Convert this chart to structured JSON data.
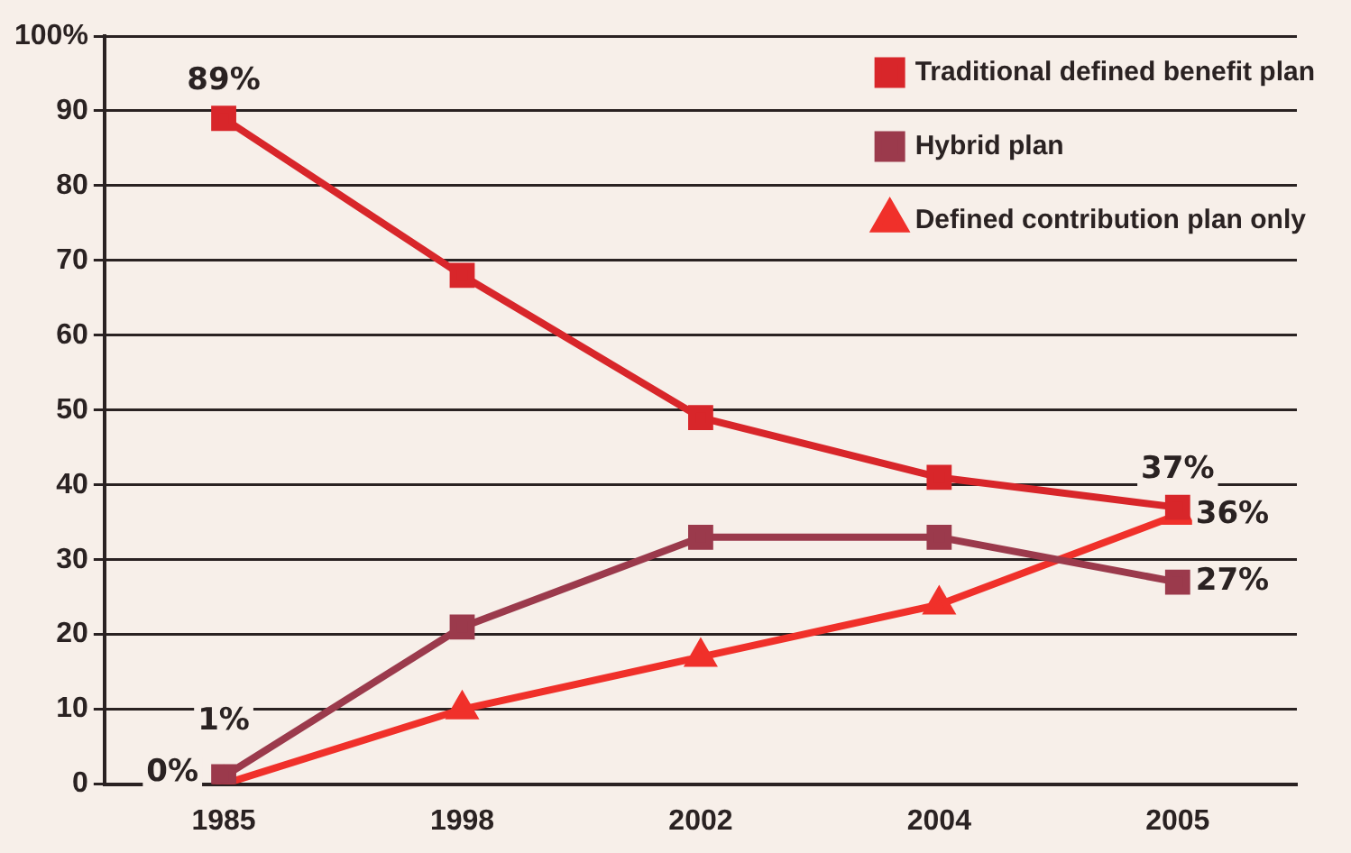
{
  "chart_data": {
    "type": "line",
    "categories": [
      "1985",
      "1998",
      "2002",
      "2004",
      "2005"
    ],
    "series": [
      {
        "name": "Traditional defined benefit plan",
        "color": "#d8262a",
        "marker": "square",
        "values": [
          89,
          68,
          49,
          41,
          37
        ],
        "value_labels": [
          "89%",
          null,
          null,
          null,
          "37%"
        ]
      },
      {
        "name": "Hybrid plan",
        "color": "#9b3a4c",
        "marker": "square",
        "values": [
          1,
          21,
          33,
          33,
          27
        ],
        "value_labels": [
          "1%",
          null,
          null,
          null,
          "27%"
        ]
      },
      {
        "name": "Defined contribution plan only",
        "color": "#f0302a",
        "marker": "triangle",
        "values": [
          0,
          10,
          17,
          24,
          36
        ],
        "value_labels": [
          "0%",
          null,
          null,
          null,
          "36%"
        ]
      }
    ],
    "ylim": [
      0,
      100
    ],
    "yticks": [
      0,
      10,
      20,
      30,
      40,
      50,
      60,
      70,
      80,
      90,
      {
        "value": 100,
        "label": "100%"
      }
    ],
    "grid": "y",
    "legend": "top right",
    "line_style": "solid"
  }
}
